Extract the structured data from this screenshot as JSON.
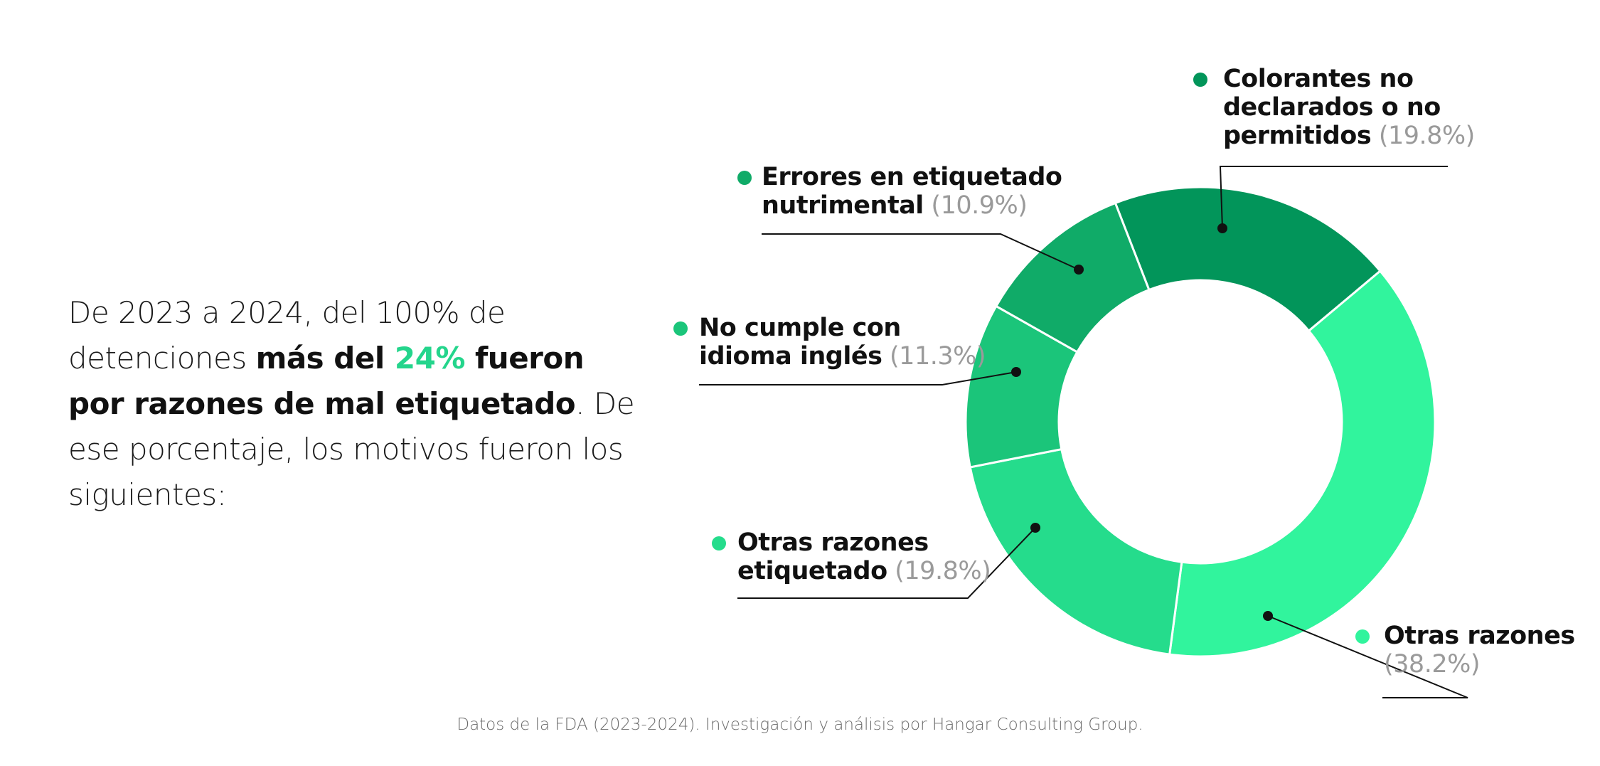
{
  "intro": {
    "part1": "De 2023 a 2024, del 100% de detenciones ",
    "bold_a": "más del ",
    "accent": "24%",
    "bold_b": " fueron por razones de mal etiquetado",
    "part2": ". De ese porcentaje, los motivos fueron los siguientes:"
  },
  "footer": "Datos de la FDA (2023-2024). Investigación y análisis por Hangar Consulting Group.",
  "chart_data": {
    "type": "pie",
    "donut": true,
    "title": "",
    "slices": [
      {
        "name": "Colorantes no declarados o no permitidos",
        "value": 19.8,
        "pct_label": "(19.8%)",
        "color": "#02955a",
        "label_lines": [
          "Colorantes no",
          "declarados o no",
          "permitidos"
        ]
      },
      {
        "name": "Otras razones",
        "value": 38.2,
        "pct_label": "(38.2%)",
        "color": "#31f49d",
        "label_lines": [
          "Otras razones",
          ""
        ]
      },
      {
        "name": "Otras razones etiquetado",
        "value": 19.8,
        "pct_label": "(19.8%)",
        "color": "#25dc8c",
        "label_lines": [
          "Otras razones",
          "etiquetado"
        ]
      },
      {
        "name": "No cumple con idioma inglés",
        "value": 11.3,
        "pct_label": "(11.3%)",
        "color": "#1bc57a",
        "label_lines": [
          "No cumple con",
          "idioma inglés"
        ]
      },
      {
        "name": "Errores en etiquetado nutrimental",
        "value": 10.9,
        "pct_label": "(10.9%)",
        "color": "#10ab68",
        "label_lines": [
          "Errores en etiquetado",
          "nutrimental"
        ]
      }
    ],
    "legend": "callouts"
  }
}
